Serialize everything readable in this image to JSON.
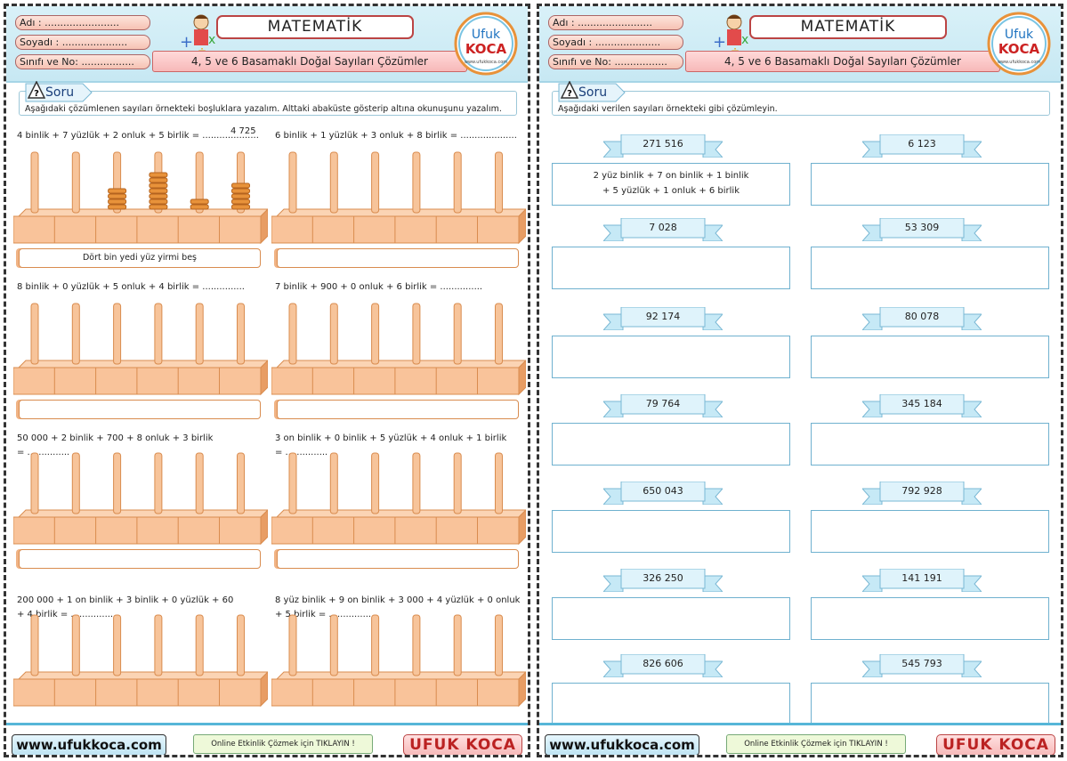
{
  "header": {
    "fields": [
      "Adı :",
      "Soyadı :",
      "Sınıfı ve No:"
    ],
    "field_dots": [
      "........................",
      ".....................",
      "................."
    ],
    "title": "MATEMATİK",
    "subtitle": "4, 5 ve 6 Basamaklı Doğal Sayıları Çözümler",
    "logo_top": "Ufuk",
    "logo_bottom": "KOCA",
    "logo_url": "www.ufukkoca.com"
  },
  "left": {
    "soru_label": "Soru",
    "instruction": "Aşağıdaki çözümlenen sayıları örnekteki boşluklara yazalım. Alttaki abaküste gösterip altına okunuşunu yazalım.",
    "items": [
      {
        "expr": "4 binlik + 7 yüzlük + 2 onluk + 5 birlik",
        "tail": "= ....................",
        "answer": "4 725",
        "reading": "Dört bin yedi yüz yirmi beş",
        "beads": [
          0,
          0,
          4,
          7,
          2,
          5
        ]
      },
      {
        "expr": "6 binlik + 1 yüzlük + 3 onluk + 8 birlik",
        "tail": "= ....................",
        "answer": "",
        "reading": "",
        "beads": [
          0,
          0,
          0,
          0,
          0,
          0
        ]
      },
      {
        "expr": "8 binlik + 0 yüzlük + 5 onluk + 4 birlik",
        "tail": "= ...............",
        "answer": "",
        "reading": "",
        "beads": [
          0,
          0,
          0,
          0,
          0,
          0
        ]
      },
      {
        "expr": "7 binlik + 900 + 0 onluk + 6 birlik",
        "tail": "= ...............",
        "answer": "",
        "reading": "",
        "beads": [
          0,
          0,
          0,
          0,
          0,
          0
        ]
      },
      {
        "expr": "50 000 + 2 binlik + 700 + 8 onluk + 3 birlik",
        "tail": "= ...............",
        "answer": "",
        "reading": "",
        "beads": [
          0,
          0,
          0,
          0,
          0,
          0
        ]
      },
      {
        "expr": "3 on binlik + 0 binlik + 5 yüzlük + 4 onluk + 1 birlik",
        "tail": "= ...............",
        "answer": "",
        "reading": "",
        "beads": [
          0,
          0,
          0,
          0,
          0,
          0
        ]
      },
      {
        "expr": "200 000 + 1 on binlik + 3 binlik + 0 yüzlük + 60",
        "tail": "+ 4 birlik = ...............",
        "answer": "",
        "reading": "",
        "beads": [
          0,
          0,
          0,
          0,
          0,
          0
        ]
      },
      {
        "expr": "8 yüz binlik + 9 on binlik + 3 000 + 4 yüzlük + 0 onluk",
        "tail": "+ 5 birlik = ...............",
        "answer": "",
        "reading": "",
        "beads": [
          0,
          0,
          0,
          0,
          0,
          0
        ]
      }
    ]
  },
  "right": {
    "soru_label": "Soru",
    "instruction": "Aşağıdaki verilen sayıları örnekteki gibi çözümleyin.",
    "numbers": [
      "271 516",
      "6 123",
      "7 028",
      "53 309",
      "92 174",
      "80 078",
      "79 764",
      "345 184",
      "650 043",
      "792 928",
      "326 250",
      "141 191",
      "826 606",
      "545 793"
    ],
    "example_lines": [
      "2 yüz binlik + 7 on binlik + 1 binlik",
      "+ 5 yüzlük + 1 onluk + 6 birlik"
    ]
  },
  "footer": {
    "site": "www.ufukkoca.com",
    "online": "Online Etkinlik Çözmek için TIKLAYIN !",
    "brand": "UFUK KOCA"
  },
  "colors": {
    "header_bg": "#c7e8f3",
    "bead": "#e8923a",
    "rod": "#f7c49a",
    "title_border": "#b44444"
  }
}
